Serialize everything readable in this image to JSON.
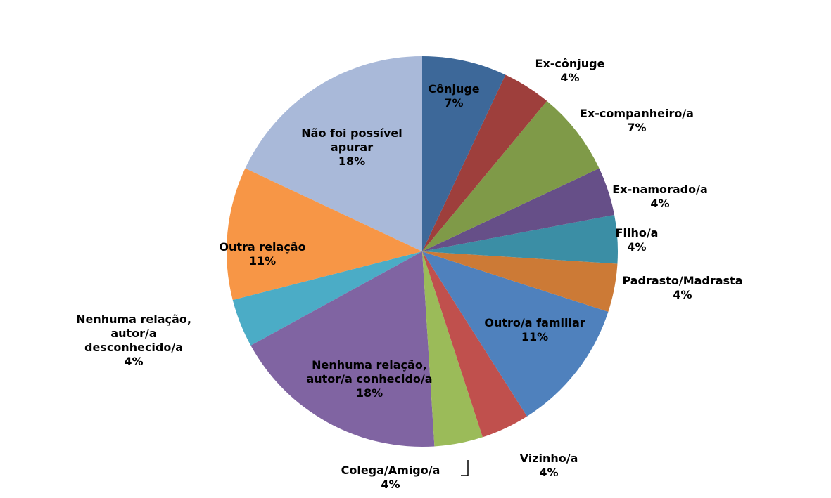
{
  "chart_data": {
    "type": "pie",
    "categories": [
      "Cônjuge",
      "Ex-cônjuge",
      "Ex-companheiro/a",
      "Ex-namorado/a",
      "Filho/a",
      "Padrasto/Madrasta",
      "Outro/a familiar",
      "Vizinho/a",
      "Colega/Amigo/a",
      "Nenhuma relação, autor/a conhecido/a",
      "Nenhuma relação, autor/a desconhecido/a",
      "Outra relação",
      "Não foi possível apurar"
    ],
    "values": [
      7,
      4,
      7,
      4,
      4,
      4,
      11,
      4,
      4,
      18,
      4,
      11,
      18
    ],
    "value_labels": [
      "7%",
      "4%",
      "7%",
      "4%",
      "4%",
      "4%",
      "11%",
      "4%",
      "4%",
      "18%",
      "4%",
      "11%",
      "18%"
    ],
    "colors": [
      "#3d6899",
      "#9e3f3c",
      "#7f9a48",
      "#664f88",
      "#3b8ea5",
      "#cc7a36",
      "#4f81bd",
      "#c0504d",
      "#9bbb59",
      "#8064a2",
      "#4bacc6",
      "#f79646",
      "#a9b9d9"
    ]
  }
}
